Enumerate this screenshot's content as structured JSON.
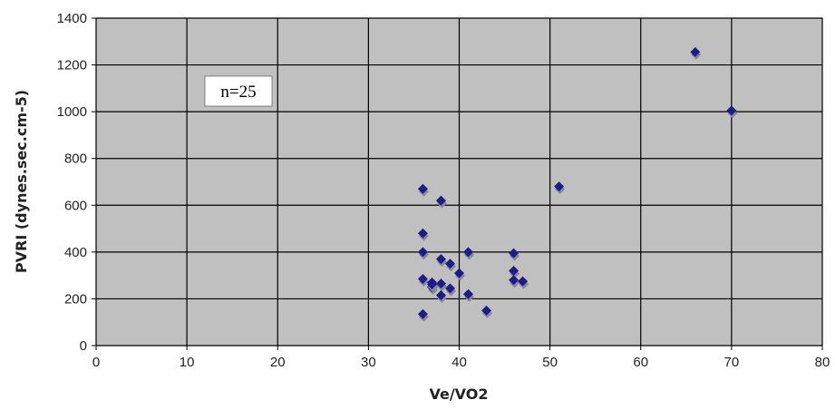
{
  "chart_data": {
    "type": "scatter",
    "title": "",
    "xlabel": "Ve/VO2",
    "ylabel": "PVRI (dynes.sec.cm-5)",
    "xlim": [
      0,
      80
    ],
    "ylim": [
      0,
      1400
    ],
    "x_ticks": [
      0,
      10,
      20,
      30,
      40,
      50,
      60,
      70,
      80
    ],
    "y_ticks": [
      0,
      200,
      400,
      600,
      800,
      1000,
      1200,
      1400
    ],
    "grid": true,
    "legend": "none",
    "annotation": "n=25",
    "colors": {
      "plot_background": "#c0c0c0",
      "grid": "#000000",
      "marker": "#1c1c8c",
      "marker_shadow": "#8a8a8a"
    },
    "series": [
      {
        "points": [
          [
            36,
            670
          ],
          [
            36,
            480
          ],
          [
            36,
            400
          ],
          [
            36,
            285
          ],
          [
            36,
            135
          ],
          [
            37,
            270
          ],
          [
            37,
            250
          ],
          [
            38,
            620
          ],
          [
            38,
            370
          ],
          [
            38,
            265
          ],
          [
            38,
            215
          ],
          [
            39,
            350
          ],
          [
            39,
            245
          ],
          [
            40,
            310
          ],
          [
            41,
            400
          ],
          [
            41,
            220
          ],
          [
            43,
            150
          ],
          [
            46,
            395
          ],
          [
            46,
            320
          ],
          [
            46,
            280
          ],
          [
            47,
            275
          ],
          [
            51,
            680
          ],
          [
            66,
            1255
          ],
          [
            70,
            1005
          ],
          [
            37,
            262
          ]
        ]
      }
    ]
  }
}
